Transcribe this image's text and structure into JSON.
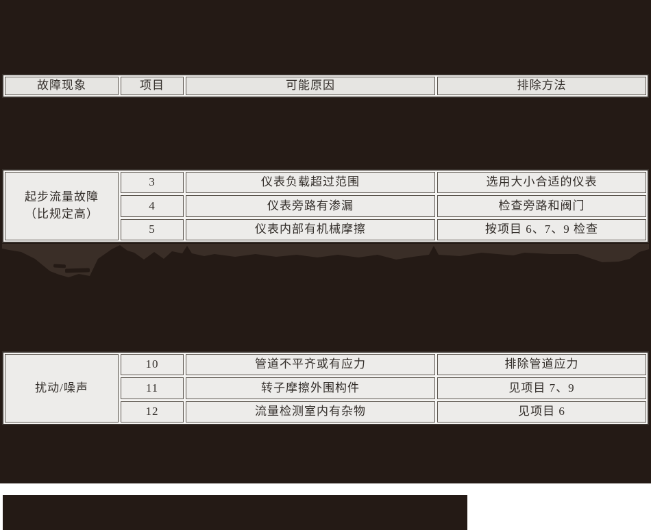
{
  "colors": {
    "background_dark": "#241a15",
    "torn_band": "#3a2e27",
    "cell_background": "#edecea",
    "header_background": "#e6e5e2",
    "border_dark": "#37302b",
    "text": "#332e2a"
  },
  "table": {
    "headers": {
      "phenomenon": "故障现象",
      "item": "项目",
      "cause": "可能原因",
      "remedy": "排除方法"
    },
    "sections": [
      {
        "phenomenon_line1": "起步流量故障",
        "phenomenon_line2": "（比规定高）",
        "rows": [
          {
            "item": "3",
            "cause": "仪表负载超过范围",
            "remedy": "选用大小合适的仪表"
          },
          {
            "item": "4",
            "cause": "仪表旁路有渗漏",
            "remedy": "检查旁路和阀门"
          },
          {
            "item": "5",
            "cause": "仪表内部有机械摩擦",
            "remedy": "按项目 6、7、9 检查"
          }
        ]
      },
      {
        "phenomenon_line1": "扰动/噪声",
        "phenomenon_line2": "",
        "rows": [
          {
            "item": "10",
            "cause": "管道不平齐或有应力",
            "remedy": "排除管道应力"
          },
          {
            "item": "11",
            "cause": "转子摩擦外围构件",
            "remedy": "见项目 7、9"
          },
          {
            "item": "12",
            "cause": "流量检测室内有杂物",
            "remedy": "见项目 6"
          }
        ]
      }
    ]
  }
}
